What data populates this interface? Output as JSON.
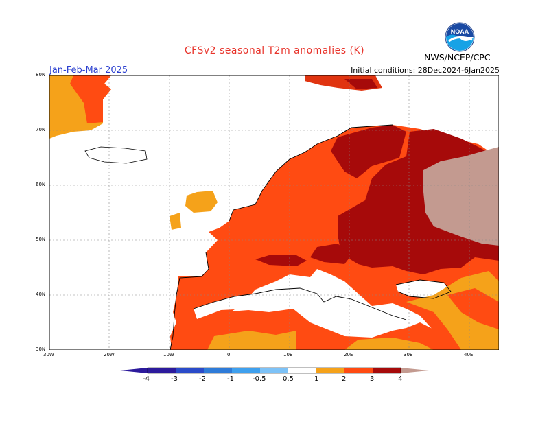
{
  "header": {
    "title": "CFSv2 seasonal T2m anomalies (K)",
    "period": "Jan-Feb-Mar 2025",
    "initial_conditions": "Initial conditions: 28Dec2024-6Jan2025",
    "agency": "NWS/NCEP/CPC",
    "logo_text": "NOAA"
  },
  "axes": {
    "lat_labels": [
      "80N",
      "70N",
      "60N",
      "50N",
      "40N",
      "30N"
    ],
    "lon_labels": [
      "30W",
      "20W",
      "10W",
      "0",
      "10E",
      "20E",
      "30E",
      "40E"
    ]
  },
  "legend": {
    "tick_labels": [
      "-4",
      "-3",
      "-2",
      "-1",
      "-0.5",
      "0.5",
      "1",
      "2",
      "3",
      "4"
    ],
    "colors": [
      "#2c1a9c",
      "#2a4bc9",
      "#2e7bd8",
      "#3fa0ee",
      "#7dc2f7",
      "#ffffff",
      "#f5a21a",
      "#ff4b12",
      "#e03410",
      "#a60a0a",
      "#c39a90",
      "#7a4a40"
    ]
  }
}
